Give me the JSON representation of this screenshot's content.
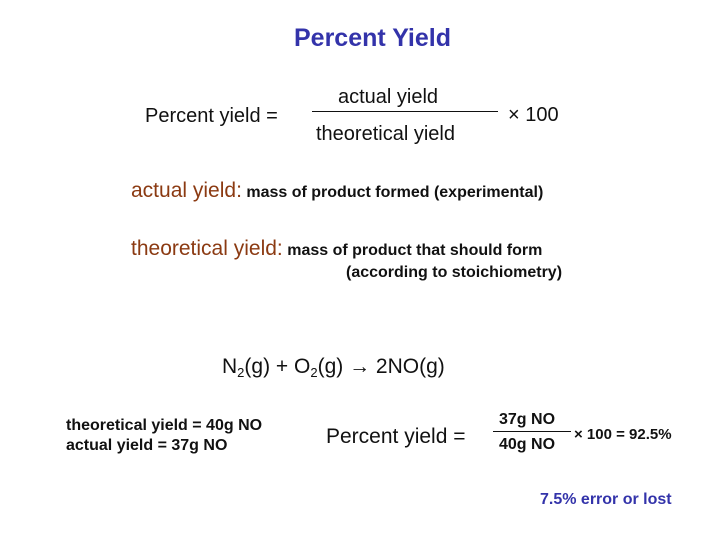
{
  "title": "Percent Yield",
  "formula": {
    "lhs": "Percent yield =",
    "numerator": "actual yield",
    "denominator": "theoretical yield",
    "multiplier": "× 100"
  },
  "definitions": {
    "actual_term": "actual yield",
    "actual_colon": ":",
    "actual_text": "mass of product formed (experimental)",
    "theoretical_term": "theoretical yield",
    "theoretical_colon": ":",
    "theoretical_text_line1": "mass of product that should form",
    "theoretical_text_line2": "(according to stoichiometry)"
  },
  "reaction": {
    "n": "N",
    "n_sub": "2",
    "plus_o": "(g) + O",
    "o_sub": "2",
    "arrow": "(g) → 2NO(g)"
  },
  "given": {
    "line1": "theoretical yield = 40g NO",
    "line2": "actual yield = 37g NO"
  },
  "example": {
    "lhs": "Percent yield =",
    "numerator": "37g NO",
    "denominator": "40g NO",
    "result": "× 100 = 92.5%"
  },
  "note": "7.5% error or lost",
  "colors": {
    "title": "#3333aa",
    "term": "#8b3a12",
    "note": "#3333aa"
  }
}
